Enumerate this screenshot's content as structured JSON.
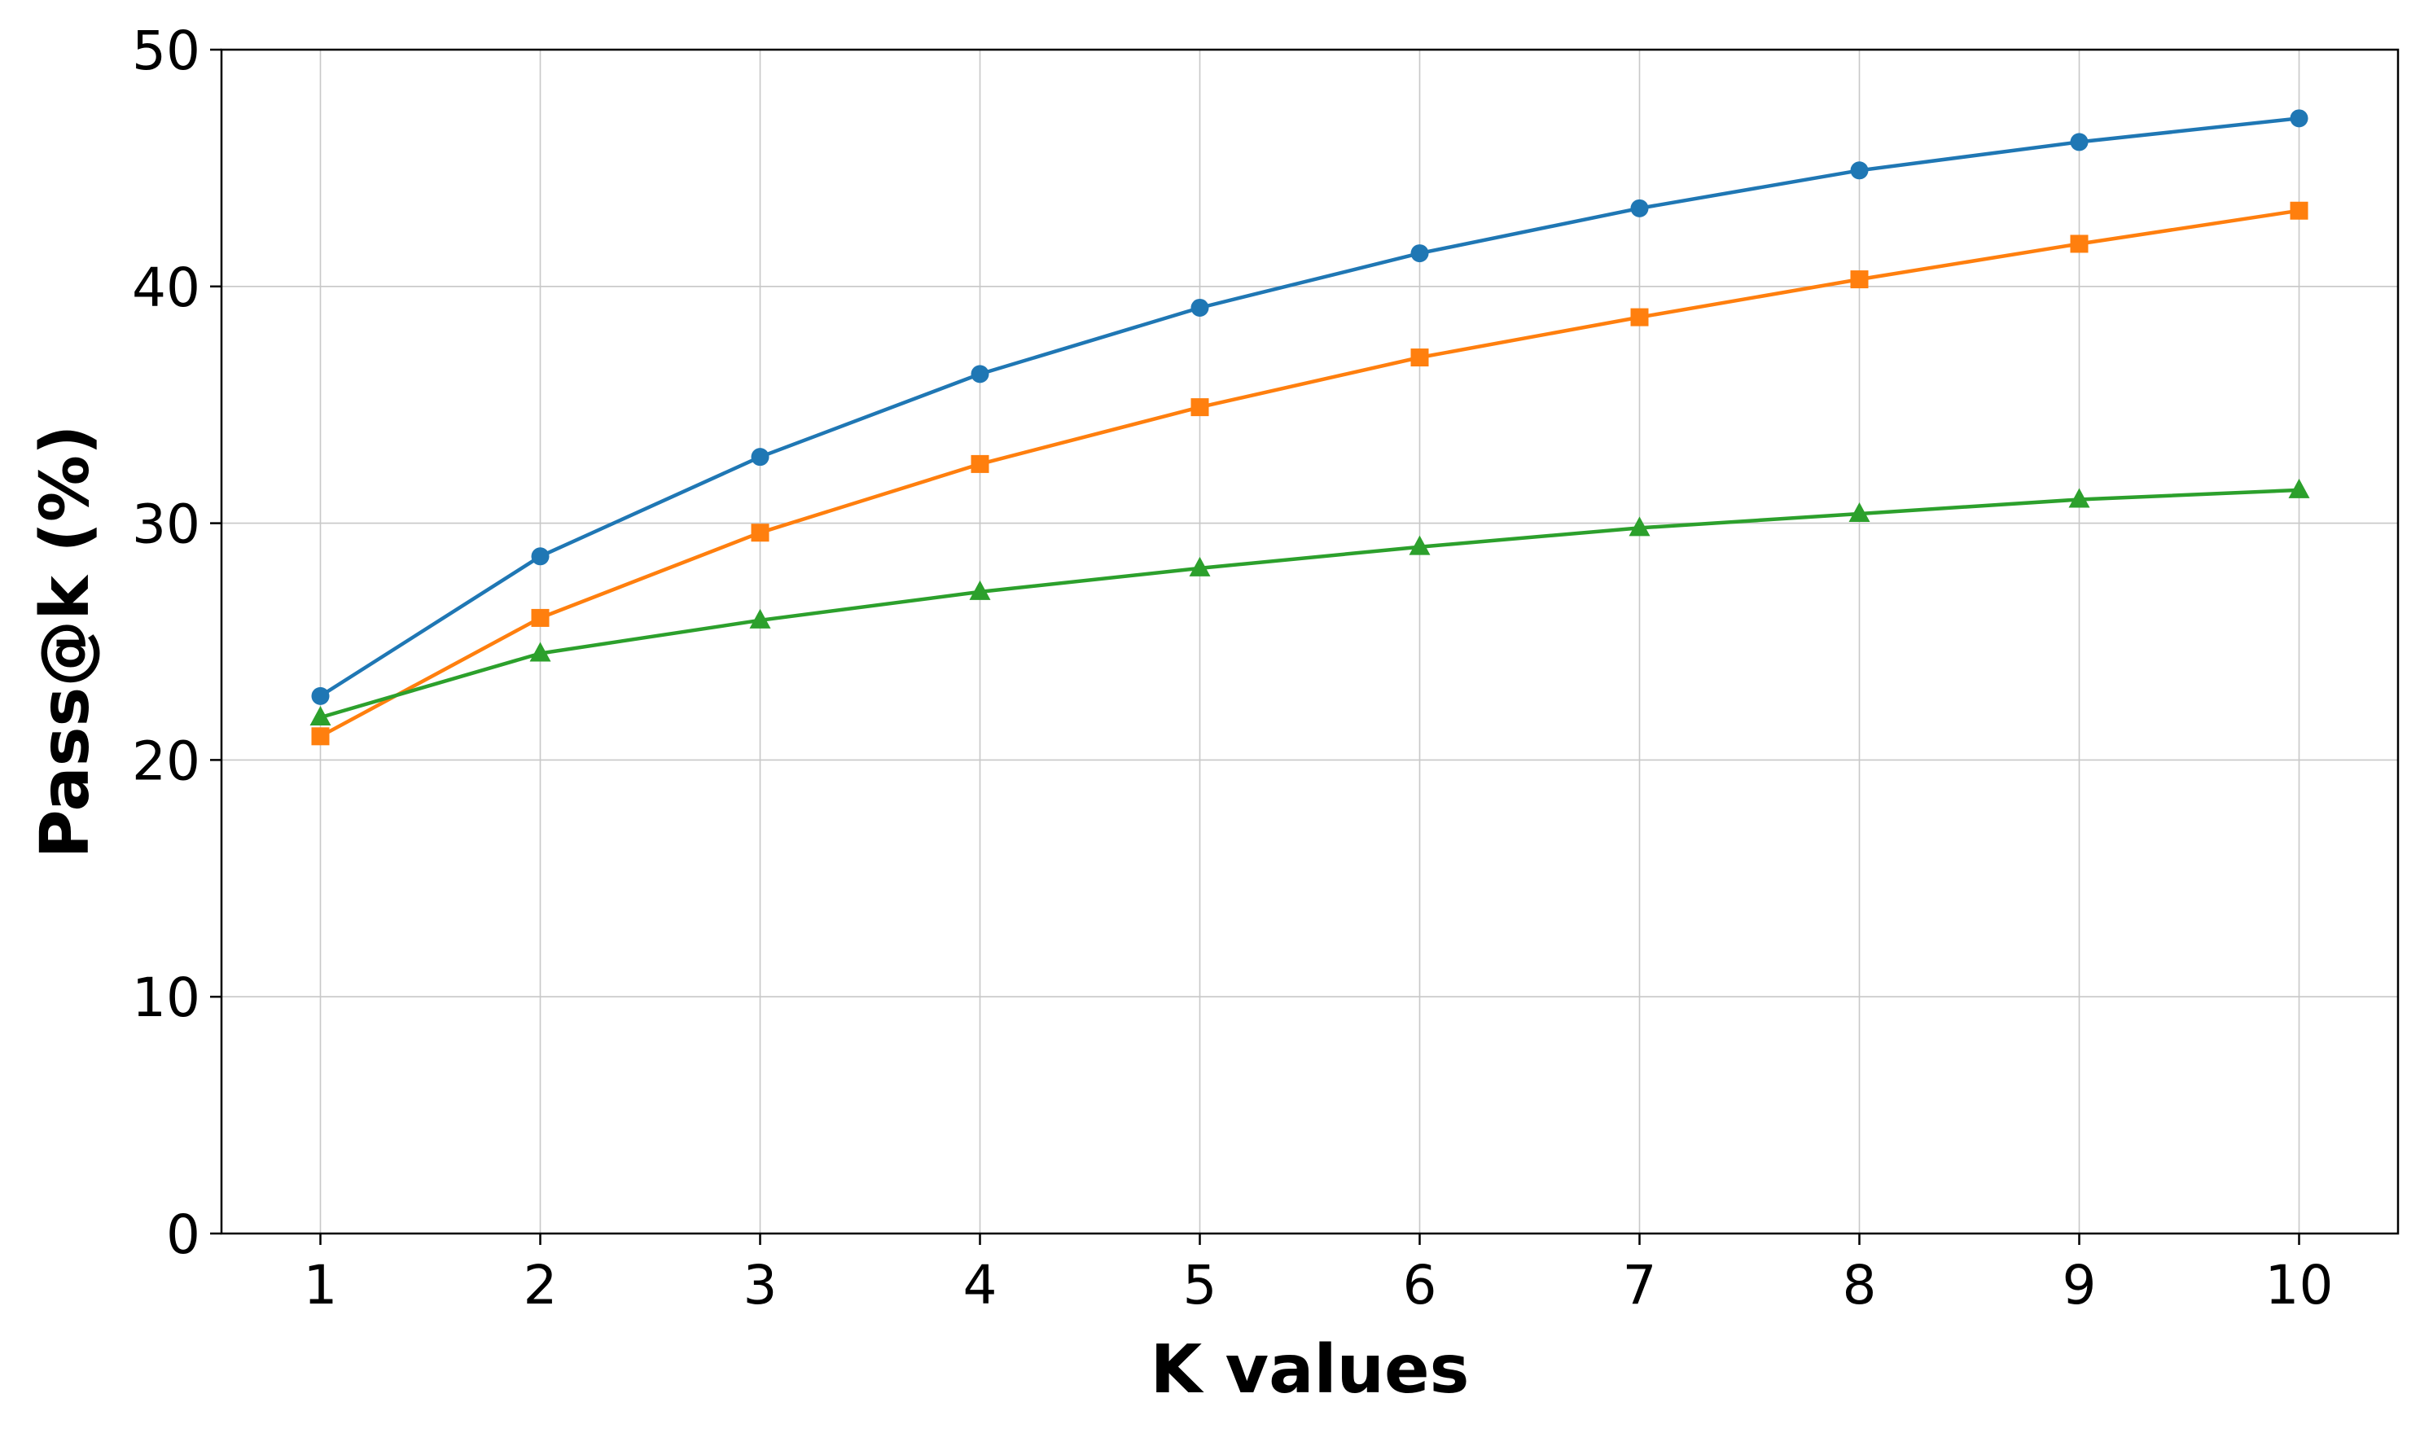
{
  "chart_data": {
    "type": "line",
    "xlabel": "K values",
    "ylabel": "Pass@k (%)",
    "x": [
      1,
      2,
      3,
      4,
      5,
      6,
      7,
      8,
      9,
      10
    ],
    "xticks": [
      "1",
      "2",
      "3",
      "4",
      "5",
      "6",
      "7",
      "8",
      "9",
      "10"
    ],
    "yticks": [
      "0",
      "10",
      "20",
      "30",
      "40",
      "50"
    ],
    "xlim": [
      0.55,
      10.45
    ],
    "ylim": [
      0,
      50
    ],
    "grid": true,
    "series": [
      {
        "color": "#1f77b4",
        "marker": "circle",
        "values": [
          22.7,
          28.6,
          32.8,
          36.3,
          39.1,
          41.4,
          43.3,
          44.9,
          46.1,
          47.1
        ]
      },
      {
        "color": "#ff7f0e",
        "marker": "square",
        "values": [
          21.0,
          26.0,
          29.6,
          32.5,
          34.9,
          37.0,
          38.7,
          40.3,
          41.8,
          43.2
        ]
      },
      {
        "color": "#2ca02c",
        "marker": "triangle",
        "values": [
          21.8,
          24.5,
          25.9,
          27.1,
          28.1,
          29.0,
          29.8,
          30.4,
          31.0,
          31.4
        ]
      }
    ]
  }
}
